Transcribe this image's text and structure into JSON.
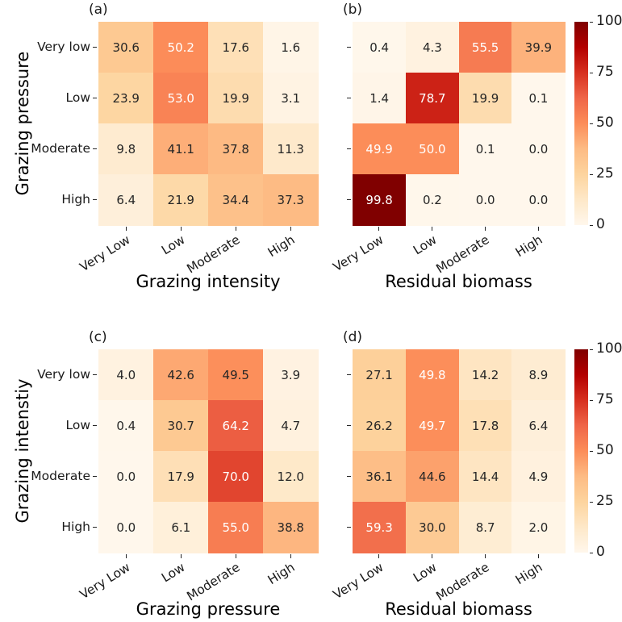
{
  "figure": {
    "background": "#ffffff",
    "colormap": {
      "name": "OrRd",
      "stops": [
        "#fff7ec",
        "#fee8c8",
        "#fdd49e",
        "#fdbb84",
        "#fc8d59",
        "#ef6548",
        "#d7301f",
        "#b30000",
        "#7f0000"
      ]
    },
    "vmin": 0,
    "vmax": 100,
    "colorbar_ticks": [
      "100",
      "75",
      "50",
      "25",
      "0"
    ],
    "annotation_text_dark": "#262626",
    "annotation_text_light": "#ffffff",
    "luminance_threshold": 0.408
  },
  "chart_data": [
    {
      "type": "heatmap",
      "panel_label": "(a)",
      "xlabel": "Grazing intensity",
      "ylabel": "Grazing pressure",
      "x_categories": [
        "Very Low",
        "Low",
        "Moderate",
        "High"
      ],
      "y_categories": [
        "Very low",
        "Low",
        "Moderate",
        "High"
      ],
      "show_y_tick_labels": true,
      "has_colorbar": false,
      "vmin": 0,
      "vmax": 100,
      "values": [
        [
          30.6,
          50.2,
          17.6,
          1.6
        ],
        [
          23.9,
          53.0,
          19.9,
          3.1
        ],
        [
          9.8,
          41.1,
          37.8,
          11.3
        ],
        [
          6.4,
          21.9,
          34.4,
          37.3
        ]
      ],
      "annot": [
        [
          "30.6",
          "50.2",
          "17.6",
          "1.6"
        ],
        [
          "23.9",
          "53.0",
          "19.9",
          "3.1"
        ],
        [
          "9.8",
          "41.1",
          "37.8",
          "11.3"
        ],
        [
          "6.4",
          "21.9",
          "34.4",
          "37.3"
        ]
      ]
    },
    {
      "type": "heatmap",
      "panel_label": "(b)",
      "xlabel": "Residual biomass",
      "ylabel": null,
      "x_categories": [
        "Very Low",
        "Low",
        "Moderate",
        "High"
      ],
      "y_categories": [
        "Very low",
        "Low",
        "Moderate",
        "High"
      ],
      "show_y_tick_labels": false,
      "has_colorbar": true,
      "vmin": 0,
      "vmax": 100,
      "values": [
        [
          0.4,
          4.3,
          55.5,
          39.9
        ],
        [
          1.4,
          78.7,
          19.9,
          0.1
        ],
        [
          49.9,
          50.0,
          0.1,
          0.0
        ],
        [
          99.8,
          0.2,
          0.0,
          0.0
        ]
      ],
      "annot": [
        [
          "0.4",
          "4.3",
          "55.5",
          "39.9"
        ],
        [
          "1.4",
          "78.7",
          "19.9",
          "0.1"
        ],
        [
          "49.9",
          "50.0",
          "0.1",
          "0.0"
        ],
        [
          "99.8",
          "0.2",
          "0.0",
          "0.0"
        ]
      ]
    },
    {
      "type": "heatmap",
      "panel_label": "(c)",
      "xlabel": "Grazing pressure",
      "ylabel": "Grazing intenstiy",
      "x_categories": [
        "Very Low",
        "Low",
        "Moderate",
        "High"
      ],
      "y_categories": [
        "Very low",
        "Low",
        "Moderate",
        "High"
      ],
      "show_y_tick_labels": true,
      "has_colorbar": false,
      "vmin": 0,
      "vmax": 100,
      "values": [
        [
          4.0,
          42.6,
          49.5,
          3.9
        ],
        [
          0.4,
          30.7,
          64.2,
          4.7
        ],
        [
          0.0,
          17.9,
          70.0,
          12.0
        ],
        [
          0.0,
          6.1,
          55.0,
          38.8
        ]
      ],
      "annot": [
        [
          "4.0",
          "42.6",
          "49.5",
          "3.9"
        ],
        [
          "0.4",
          "30.7",
          "64.2",
          "4.7"
        ],
        [
          "0.0",
          "17.9",
          "70.0",
          "12.0"
        ],
        [
          "0.0",
          "6.1",
          "55.0",
          "38.8"
        ]
      ]
    },
    {
      "type": "heatmap",
      "panel_label": "(d)",
      "xlabel": "Residual biomass",
      "ylabel": null,
      "x_categories": [
        "Very Low",
        "Low",
        "Moderate",
        "High"
      ],
      "y_categories": [
        "Very low",
        "Low",
        "Moderate",
        "High"
      ],
      "show_y_tick_labels": false,
      "has_colorbar": true,
      "vmin": 0,
      "vmax": 100,
      "values": [
        [
          27.1,
          49.8,
          14.2,
          8.9
        ],
        [
          26.2,
          49.7,
          17.8,
          6.4
        ],
        [
          36.1,
          44.6,
          14.4,
          4.9
        ],
        [
          59.3,
          30.0,
          8.7,
          2.0
        ]
      ],
      "annot": [
        [
          "27.1",
          "49.8",
          "14.2",
          "8.9"
        ],
        [
          "26.2",
          "49.7",
          "17.8",
          "6.4"
        ],
        [
          "36.1",
          "44.6",
          "14.4",
          "4.9"
        ],
        [
          "59.3",
          "30.0",
          "8.7",
          "2.0"
        ]
      ]
    }
  ]
}
